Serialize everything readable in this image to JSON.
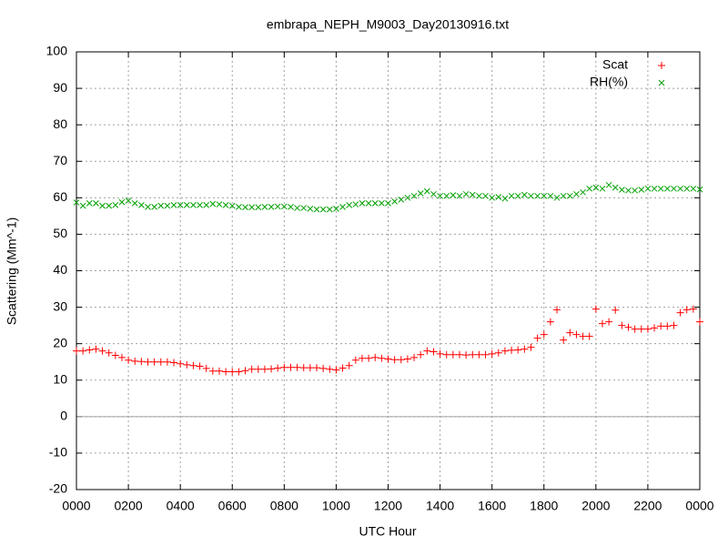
{
  "chart_data": {
    "type": "scatter",
    "title": "embrapa_NEPH_M9003_Day20130916.txt",
    "x_label": "UTC Hour",
    "y_label": "Scattering (Mm^-1)",
    "x": [
      0,
      0.25,
      0.5,
      0.75,
      1,
      1.25,
      1.5,
      1.75,
      2,
      2.25,
      2.5,
      2.75,
      3,
      3.25,
      3.5,
      3.75,
      4,
      4.25,
      4.5,
      4.75,
      5,
      5.25,
      5.5,
      5.75,
      6,
      6.25,
      6.5,
      6.75,
      7,
      7.25,
      7.5,
      7.75,
      8,
      8.25,
      8.5,
      8.75,
      9,
      9.25,
      9.5,
      9.75,
      10,
      10.25,
      10.5,
      10.75,
      11,
      11.25,
      11.5,
      11.75,
      12,
      12.25,
      12.5,
      12.75,
      13,
      13.25,
      13.5,
      13.75,
      14,
      14.25,
      14.5,
      14.75,
      15,
      15.25,
      15.5,
      15.75,
      16,
      16.25,
      16.5,
      16.75,
      17,
      17.25,
      17.5,
      17.75,
      18,
      18.25,
      18.5,
      18.75,
      19,
      19.25,
      19.5,
      19.75,
      20,
      20.25,
      20.5,
      20.75,
      21,
      21.25,
      21.5,
      21.75,
      22,
      22.25,
      22.5,
      22.75,
      23,
      23.25,
      23.5,
      23.75,
      24
    ],
    "series": [
      {
        "name": "Scat",
        "color": "#ff0000",
        "marker": "plus",
        "values": [
          18,
          18,
          18.3,
          18.5,
          18,
          17.5,
          16.8,
          16.2,
          15.5,
          15.2,
          15.1,
          15,
          15,
          15,
          15,
          14.8,
          14.5,
          14.2,
          14,
          13.8,
          13.2,
          12.5,
          12.5,
          12.3,
          12.3,
          12.3,
          12.6,
          13,
          13,
          13,
          13.1,
          13.3,
          13.5,
          13.5,
          13.5,
          13.4,
          13.4,
          13.4,
          13.2,
          13,
          12.8,
          13.3,
          14,
          15.5,
          16,
          16,
          16.2,
          16,
          15.8,
          15.6,
          15.6,
          15.8,
          16.2,
          17,
          18,
          17.8,
          17.2,
          17,
          17,
          17,
          16.9,
          17,
          17,
          17,
          17.2,
          17.5,
          18,
          18.2,
          18.3,
          18.5,
          19,
          21.5,
          22.5,
          26,
          29.3,
          21,
          23,
          22.5,
          22,
          22,
          29.5,
          25.5,
          26,
          29.2,
          25,
          24.5,
          24,
          24,
          24,
          24.3,
          24.8,
          24.8,
          25,
          28.5,
          29.3,
          29.5,
          26
        ]
      },
      {
        "name": "RH(%)",
        "color": "#00a000",
        "marker": "cross",
        "values": [
          58.7,
          57.8,
          58.5,
          58.5,
          57.8,
          57.8,
          58,
          58.8,
          59.2,
          58.5,
          58,
          57.5,
          57.5,
          57.8,
          57.8,
          58,
          58,
          58,
          58,
          58,
          58,
          58.3,
          58.2,
          58,
          57.8,
          57.5,
          57.4,
          57.4,
          57.4,
          57.5,
          57.5,
          57.6,
          57.6,
          57.5,
          57.2,
          57.2,
          57,
          56.8,
          56.8,
          56.8,
          57,
          57.5,
          58,
          58.2,
          58.5,
          58.5,
          58.5,
          58.5,
          58.5,
          59,
          59.5,
          60,
          60.5,
          61.2,
          61.8,
          61,
          60.5,
          60.5,
          60.7,
          60.5,
          61,
          60.8,
          60.5,
          60.5,
          60,
          60.2,
          59.8,
          60.5,
          60.5,
          60.8,
          60.5,
          60.5,
          60.5,
          60.5,
          60,
          60.5,
          60.5,
          61,
          61.5,
          62.5,
          62.8,
          62.5,
          63.5,
          62.8,
          62.2,
          62,
          62,
          62.2,
          62.5,
          62.5,
          62.5,
          62.5,
          62.5,
          62.5,
          62.5,
          62.5,
          62.3
        ]
      }
    ],
    "xlim": [
      0,
      24
    ],
    "xticks": [
      {
        "value": 0,
        "label": "0000"
      },
      {
        "value": 2,
        "label": "0200"
      },
      {
        "value": 4,
        "label": "0400"
      },
      {
        "value": 6,
        "label": "0600"
      },
      {
        "value": 8,
        "label": "0800"
      },
      {
        "value": 10,
        "label": "1000"
      },
      {
        "value": 12,
        "label": "1200"
      },
      {
        "value": 14,
        "label": "1400"
      },
      {
        "value": 16,
        "label": "1600"
      },
      {
        "value": 18,
        "label": "1800"
      },
      {
        "value": 20,
        "label": "2000"
      },
      {
        "value": 22,
        "label": "2200"
      },
      {
        "value": 24,
        "label": "0000"
      }
    ],
    "ylim": [
      -20,
      100
    ],
    "yticks": [
      -20,
      -10,
      0,
      10,
      20,
      30,
      40,
      50,
      60,
      70,
      80,
      90,
      100
    ],
    "grid": true,
    "zero_axis": true,
    "legend": "top-right"
  }
}
